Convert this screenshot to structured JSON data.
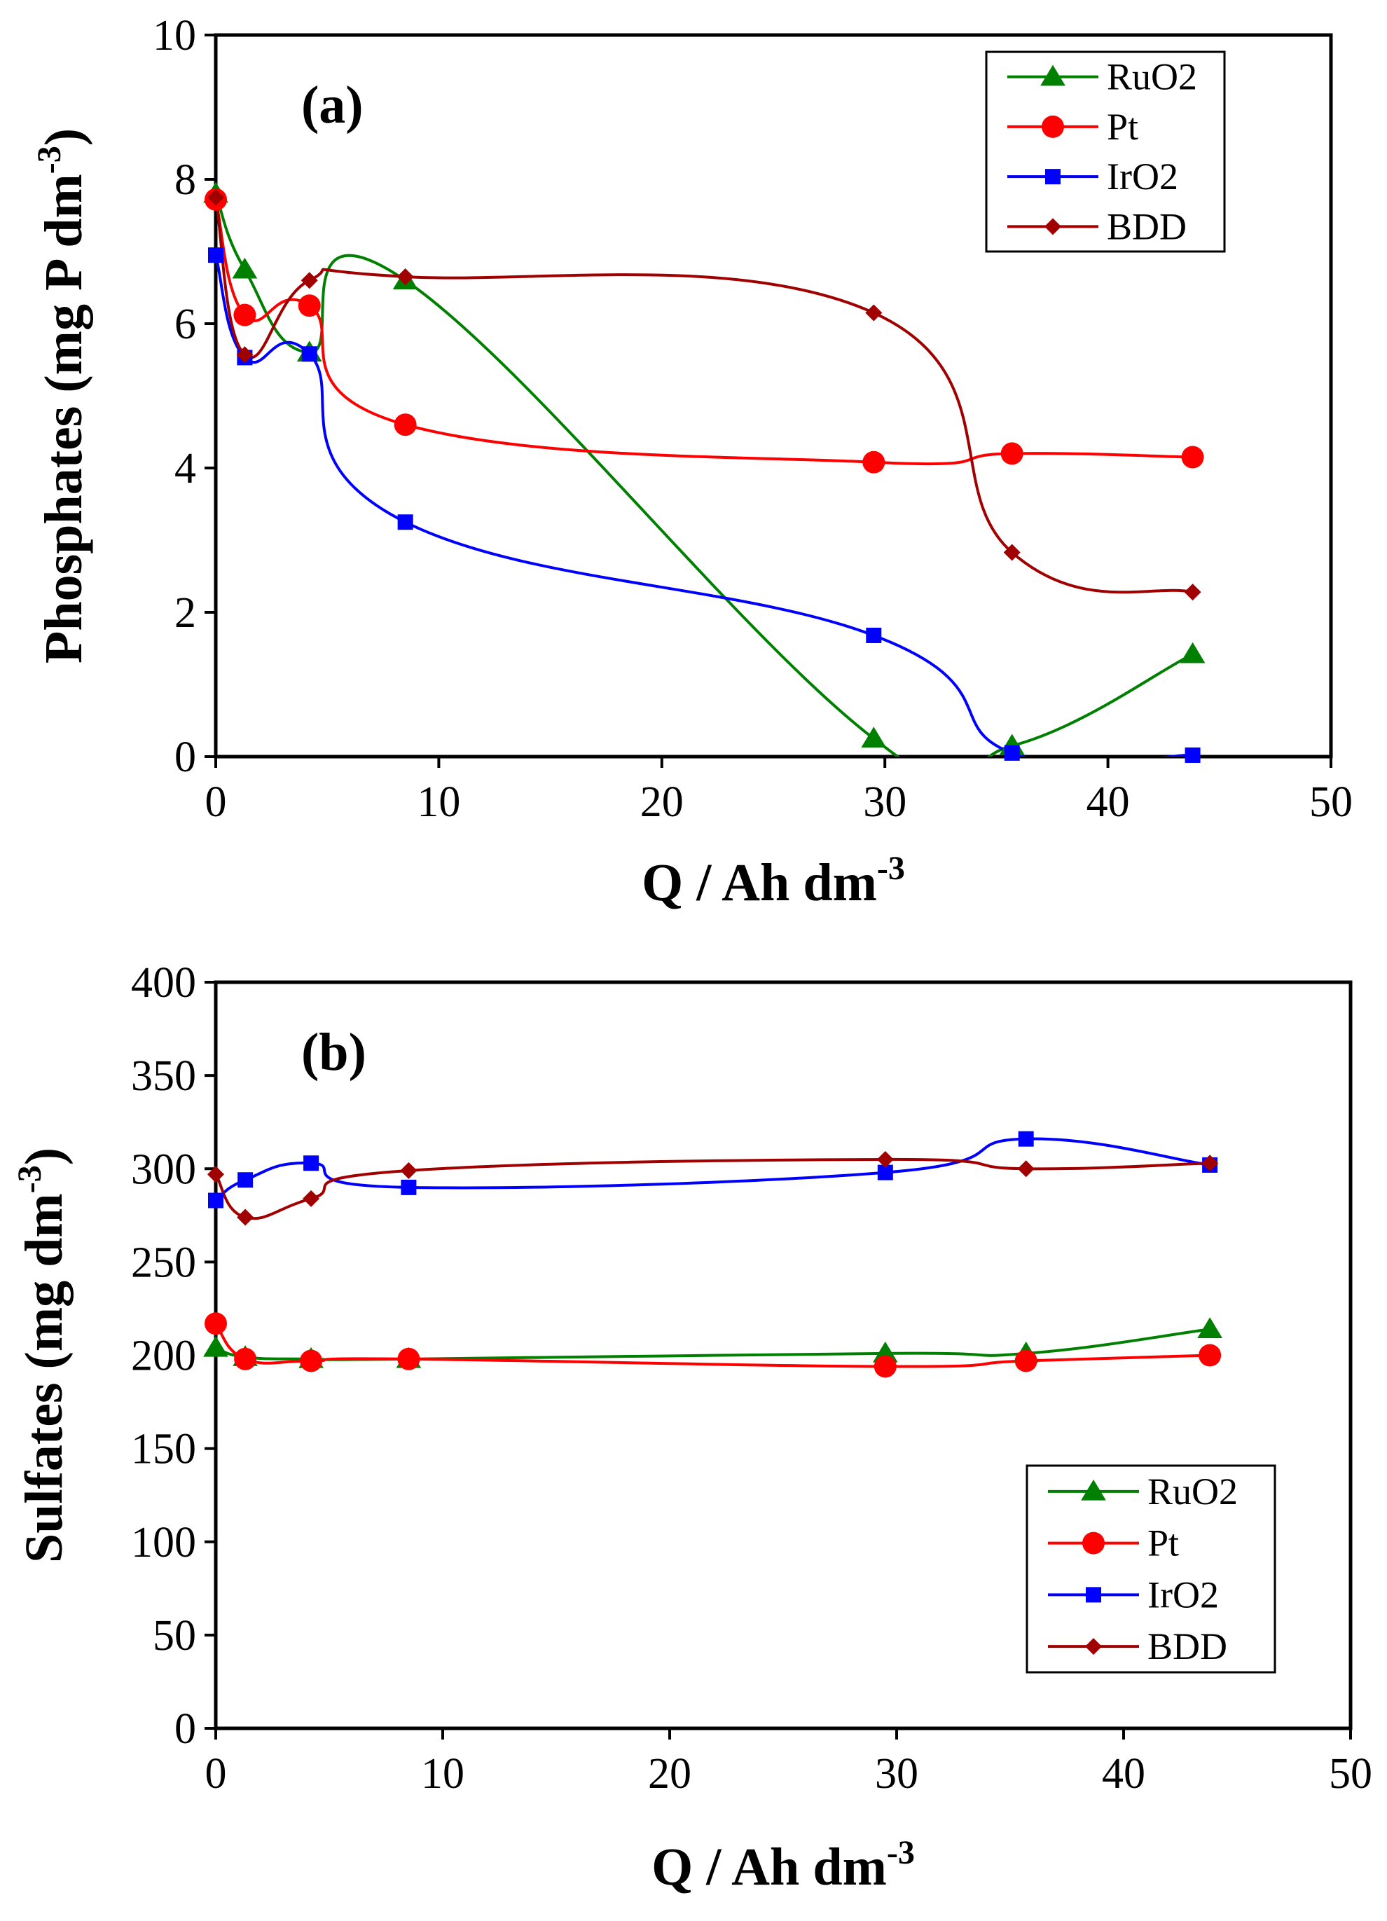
{
  "chart_data": [
    {
      "type": "line",
      "panel_label": "(a)",
      "xlabel_main": "Q / Ah dm",
      "xlabel_sup": "-3",
      "ylabel_main": "Phosphates (mg P dm",
      "ylabel_sup": "-3",
      "ylabel_end": ")",
      "xlim": [
        0,
        50
      ],
      "ylim": [
        0,
        10
      ],
      "xticks": [
        "0",
        "10",
        "20",
        "30",
        "40",
        "50"
      ],
      "yticks": [
        "0",
        "2",
        "4",
        "6",
        "8",
        "10"
      ],
      "legend_position": "top-right",
      "grid": false,
      "series": [
        {
          "name": "RuO2",
          "color": "#008000",
          "marker": "triangle",
          "x": [
            0,
            1.3,
            4.2,
            8.5,
            29.5,
            35.7,
            43.8
          ],
          "y": [
            7.8,
            6.75,
            5.6,
            6.6,
            0.25,
            0.15,
            1.42
          ]
        },
        {
          "name": "Pt",
          "color": "#ff0000",
          "marker": "circle",
          "x": [
            0,
            1.3,
            4.2,
            8.5,
            29.5,
            35.7,
            43.8
          ],
          "y": [
            7.72,
            6.12,
            6.25,
            4.6,
            4.08,
            4.2,
            4.15
          ]
        },
        {
          "name": "IrO2",
          "color": "#0000ff",
          "marker": "square",
          "x": [
            0,
            1.3,
            4.2,
            8.5,
            29.5,
            35.7,
            43.8
          ],
          "y": [
            6.95,
            5.53,
            5.58,
            3.25,
            1.68,
            0.05,
            0.02
          ]
        },
        {
          "name": "BDD",
          "color": "#a00000",
          "marker": "diamond",
          "x": [
            0,
            1.3,
            4.2,
            8.5,
            29.5,
            35.7,
            43.8
          ],
          "y": [
            7.75,
            5.57,
            6.6,
            6.65,
            6.15,
            2.83,
            2.28
          ]
        }
      ]
    },
    {
      "type": "line",
      "panel_label": "(b)",
      "xlabel_main": "Q / Ah dm",
      "xlabel_sup": "-3",
      "ylabel_main": "Sulfates (mg dm",
      "ylabel_sup": "-3",
      "ylabel_end": ")",
      "xlim": [
        0,
        50
      ],
      "ylim": [
        0,
        400
      ],
      "xticks": [
        "0",
        "10",
        "20",
        "30",
        "40",
        "50"
      ],
      "yticks": [
        "0",
        "50",
        "100",
        "150",
        "200",
        "250",
        "300",
        "350",
        "400"
      ],
      "legend_position": "bottom-right",
      "grid": false,
      "series": [
        {
          "name": "RuO2",
          "color": "#008000",
          "marker": "triangle",
          "x": [
            0,
            1.3,
            4.2,
            8.5,
            29.5,
            35.7,
            43.8
          ],
          "y": [
            204,
            199,
            198,
            198,
            201,
            201,
            214
          ]
        },
        {
          "name": "Pt",
          "color": "#ff0000",
          "marker": "circle",
          "x": [
            0,
            1.3,
            4.2,
            8.5,
            29.5,
            35.7,
            43.8
          ],
          "y": [
            217,
            198,
            197,
            198,
            194,
            197,
            200
          ]
        },
        {
          "name": "IrO2",
          "color": "#0000ff",
          "marker": "square",
          "x": [
            0,
            1.3,
            4.2,
            8.5,
            29.5,
            35.7,
            43.8
          ],
          "y": [
            283,
            294,
            303,
            290,
            298,
            316,
            302
          ]
        },
        {
          "name": "BDD",
          "color": "#a00000",
          "marker": "diamond",
          "x": [
            0,
            1.3,
            4.2,
            8.5,
            29.5,
            35.7,
            43.8
          ],
          "y": [
            297,
            274,
            284,
            299,
            305,
            300,
            303
          ]
        }
      ]
    }
  ]
}
